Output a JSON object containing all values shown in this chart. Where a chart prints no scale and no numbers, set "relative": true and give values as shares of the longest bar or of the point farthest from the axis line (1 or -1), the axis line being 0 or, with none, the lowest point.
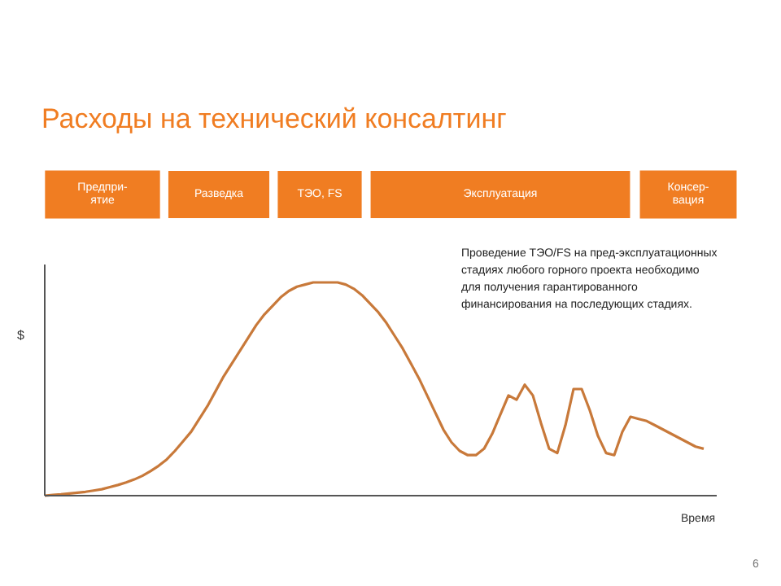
{
  "chart_data": {
    "type": "line",
    "title": "Расходы на технический консалтинг",
    "ylabel": "$",
    "xlabel": "Время",
    "relative": true,
    "categories": [
      null,
      null,
      null,
      null,
      null,
      null,
      null,
      null,
      null,
      null,
      null,
      null,
      null,
      null,
      null,
      null,
      null,
      null,
      null,
      null,
      null,
      null,
      null,
      null,
      null,
      null,
      null,
      null,
      null,
      null,
      null,
      null,
      null,
      null,
      null,
      null,
      null,
      null,
      null,
      null,
      null,
      null,
      null,
      null,
      null,
      null,
      null,
      null,
      null,
      null,
      null,
      null,
      null,
      null,
      null,
      null,
      null,
      null,
      null,
      null,
      null,
      null,
      null,
      null,
      null,
      null,
      null,
      null,
      null,
      null,
      null,
      null,
      null,
      null,
      null,
      null,
      null,
      null,
      null,
      null,
      null,
      null
    ],
    "series": [
      {
        "color": "#c8793a",
        "values": [
          0,
          0.003,
          0.006,
          0.01,
          0.014,
          0.018,
          0.024,
          0.03,
          0.04,
          0.05,
          0.062,
          0.076,
          0.093,
          0.115,
          0.14,
          0.17,
          0.21,
          0.255,
          0.3,
          0.36,
          0.42,
          0.49,
          0.56,
          0.62,
          0.68,
          0.74,
          0.8,
          0.85,
          0.89,
          0.93,
          0.96,
          0.98,
          0.99,
          1.0,
          1.0,
          1.0,
          1.0,
          0.99,
          0.97,
          0.94,
          0.9,
          0.86,
          0.81,
          0.75,
          0.69,
          0.62,
          0.55,
          0.47,
          0.39,
          0.31,
          0.25,
          0.21,
          0.19,
          0.19,
          0.22,
          0.29,
          0.38,
          0.47,
          0.45,
          0.52,
          0.47,
          0.34,
          0.22,
          0.2,
          0.33,
          0.5,
          0.5,
          0.4,
          0.28,
          0.2,
          0.19,
          0.3,
          0.37,
          0.36,
          0.35,
          0.33,
          0.31,
          0.29,
          0.27,
          0.25,
          0.23,
          0.22
        ]
      }
    ],
    "annotations": [
      "Предпри-ятие",
      "Разведка",
      "ТЭО, FS",
      "Эксплуатация",
      "Консер-вация",
      "Проведение ТЭО/FS на пред-эксплуатационных стадиях любого горного проекта необходимо для получения гарантированного финансирования на последующих стадиях.",
      "6"
    ]
  }
}
